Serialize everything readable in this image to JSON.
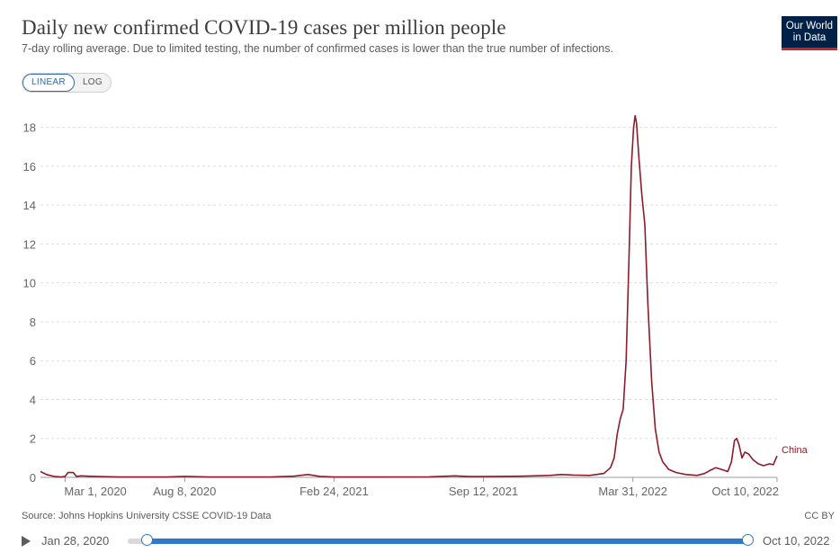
{
  "header": {
    "title": "Daily new confirmed COVID-19 cases per million people",
    "subtitle": "7-day rolling average. Due to limited testing, the number of confirmed cases is lower than the true number of infections.",
    "logo_line1": "Our World",
    "logo_line2": "in Data"
  },
  "scale_toggle": {
    "linear": "LINEAR",
    "log": "LOG",
    "selected": "LINEAR"
  },
  "footer": {
    "source": "Source: Johns Hopkins University CSSE COVID-19 Data",
    "license": "CC BY"
  },
  "timeline": {
    "start_label": "Jan 28, 2020",
    "end_label": "Oct 10, 2022"
  },
  "colors": {
    "series": "#8c1c2a",
    "accent": "#2d79c7",
    "logo_bg": "#002147",
    "logo_bar": "#ce261e"
  },
  "chart_data": {
    "type": "line",
    "title": "Daily new confirmed COVID-19 cases per million people",
    "subtitle": "7-day rolling average. Due to limited testing, the number of confirmed cases is lower than the true number of infections.",
    "xlabel": "",
    "ylabel": "",
    "x_range": [
      "2020-01-28",
      "2022-10-10"
    ],
    "ylim": [
      0,
      19
    ],
    "y_ticks": [
      0,
      2,
      4,
      6,
      8,
      10,
      12,
      14,
      16,
      18
    ],
    "x_ticks": [
      {
        "date": "2020-03-01",
        "label": "Mar 1, 2020"
      },
      {
        "date": "2020-08-08",
        "label": "Aug 8, 2020"
      },
      {
        "date": "2021-02-24",
        "label": "Feb 24, 2021"
      },
      {
        "date": "2021-09-12",
        "label": "Sep 12, 2021"
      },
      {
        "date": "2022-03-31",
        "label": "Mar 31, 2022"
      },
      {
        "date": "2022-10-10",
        "label": "Oct 10, 2022"
      }
    ],
    "grid": "horizontal dashed",
    "series": [
      {
        "name": "China",
        "color": "#8c1c2a",
        "points": [
          [
            "2020-01-28",
            0.3
          ],
          [
            "2020-02-05",
            0.15
          ],
          [
            "2020-02-15",
            0.05
          ],
          [
            "2020-02-25",
            0.02
          ],
          [
            "2020-03-01",
            0.05
          ],
          [
            "2020-03-05",
            0.25
          ],
          [
            "2020-03-12",
            0.25
          ],
          [
            "2020-03-16",
            0.05
          ],
          [
            "2020-03-22",
            0.08
          ],
          [
            "2020-04-01",
            0.06
          ],
          [
            "2020-04-15",
            0.04
          ],
          [
            "2020-05-15",
            0.02
          ],
          [
            "2020-06-15",
            0.02
          ],
          [
            "2020-07-15",
            0.02
          ],
          [
            "2020-08-08",
            0.05
          ],
          [
            "2020-09-10",
            0.02
          ],
          [
            "2020-11-01",
            0.02
          ],
          [
            "2020-12-01",
            0.02
          ],
          [
            "2021-01-01",
            0.06
          ],
          [
            "2021-01-20",
            0.15
          ],
          [
            "2021-02-05",
            0.05
          ],
          [
            "2021-02-24",
            0.02
          ],
          [
            "2021-05-01",
            0.02
          ],
          [
            "2021-07-01",
            0.03
          ],
          [
            "2021-08-05",
            0.08
          ],
          [
            "2021-08-25",
            0.04
          ],
          [
            "2021-09-12",
            0.04
          ],
          [
            "2021-11-01",
            0.06
          ],
          [
            "2021-12-10",
            0.1
          ],
          [
            "2021-12-25",
            0.15
          ],
          [
            "2022-01-10",
            0.12
          ],
          [
            "2022-02-01",
            0.1
          ],
          [
            "2022-02-20",
            0.2
          ],
          [
            "2022-03-01",
            0.5
          ],
          [
            "2022-03-06",
            1.0
          ],
          [
            "2022-03-10",
            2.2
          ],
          [
            "2022-03-14",
            3.0
          ],
          [
            "2022-03-18",
            3.5
          ],
          [
            "2022-03-22",
            6.0
          ],
          [
            "2022-03-26",
            11.5
          ],
          [
            "2022-03-29",
            16.0
          ],
          [
            "2022-04-01",
            18.0
          ],
          [
            "2022-04-03",
            18.6
          ],
          [
            "2022-04-05",
            18.2
          ],
          [
            "2022-04-08",
            16.5
          ],
          [
            "2022-04-12",
            14.5
          ],
          [
            "2022-04-16",
            13.0
          ],
          [
            "2022-04-20",
            9.0
          ],
          [
            "2022-04-25",
            5.0
          ],
          [
            "2022-04-30",
            2.5
          ],
          [
            "2022-05-05",
            1.3
          ],
          [
            "2022-05-10",
            0.8
          ],
          [
            "2022-05-18",
            0.4
          ],
          [
            "2022-05-28",
            0.25
          ],
          [
            "2022-06-10",
            0.15
          ],
          [
            "2022-06-25",
            0.1
          ],
          [
            "2022-07-05",
            0.2
          ],
          [
            "2022-07-12",
            0.35
          ],
          [
            "2022-07-20",
            0.5
          ],
          [
            "2022-07-28",
            0.4
          ],
          [
            "2022-08-05",
            0.3
          ],
          [
            "2022-08-10",
            0.8
          ],
          [
            "2022-08-14",
            1.9
          ],
          [
            "2022-08-17",
            2.0
          ],
          [
            "2022-08-20",
            1.7
          ],
          [
            "2022-08-24",
            1.0
          ],
          [
            "2022-08-28",
            1.3
          ],
          [
            "2022-09-02",
            1.2
          ],
          [
            "2022-09-08",
            0.9
          ],
          [
            "2022-09-15",
            0.7
          ],
          [
            "2022-09-22",
            0.6
          ],
          [
            "2022-09-30",
            0.7
          ],
          [
            "2022-10-05",
            0.65
          ],
          [
            "2022-10-10",
            1.1
          ]
        ]
      }
    ]
  }
}
